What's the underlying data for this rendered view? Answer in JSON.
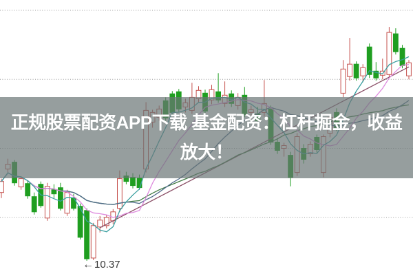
{
  "banner": {
    "line1": "正规股票配资APP下载 基金配资：杠杆掘金，收益",
    "line2": "放大！",
    "text_color": "#ffffff",
    "bg_color": "rgba(105,117,117,0.70)"
  },
  "annotation": {
    "arrow": "←",
    "label": "10.37",
    "price": 10.37,
    "candle_index": 13,
    "color": "#3a3a3a"
  },
  "chart_data": {
    "type": "candlestick",
    "title": "",
    "legend": [],
    "grid": "horizontal-dotted",
    "price_axis": {
      "min": 10.15,
      "max": 14.15,
      "gridlines": [
        11,
        12,
        13,
        14
      ],
      "grid_color": "#9e9e9e"
    },
    "colors": {
      "up": "#c5504c",
      "up_fill": "#ffffff",
      "down": "#1f9e20"
    },
    "candle_format": [
      "open",
      "high",
      "low",
      "close"
    ],
    "candles": [
      [
        11.36,
        11.56,
        11.28,
        11.52
      ],
      [
        11.7,
        11.85,
        11.64,
        11.77
      ],
      [
        11.8,
        11.83,
        11.46,
        11.5
      ],
      [
        11.44,
        11.59,
        11.4,
        11.56
      ],
      [
        11.49,
        11.53,
        11.27,
        11.31
      ],
      [
        11.3,
        11.36,
        11.04,
        11.08
      ],
      [
        11.48,
        11.52,
        11.14,
        11.17
      ],
      [
        10.99,
        11.5,
        10.95,
        11.45
      ],
      [
        11.4,
        11.48,
        11.28,
        11.34
      ],
      [
        11.43,
        11.5,
        11.1,
        11.13
      ],
      [
        11.06,
        11.4,
        11.02,
        11.36
      ],
      [
        11.28,
        11.34,
        11.1,
        11.13
      ],
      [
        11.16,
        11.2,
        10.68,
        10.71
      ],
      [
        11.1,
        11.13,
        10.37,
        10.4
      ],
      [
        10.41,
        10.92,
        10.38,
        10.88
      ],
      [
        10.86,
        11.02,
        10.78,
        10.96
      ],
      [
        10.88,
        11.04,
        10.84,
        11.0
      ],
      [
        10.95,
        11.12,
        10.9,
        11.08
      ],
      [
        11.13,
        11.68,
        11.08,
        11.56
      ],
      [
        11.6,
        11.66,
        11.48,
        11.52
      ],
      [
        11.58,
        11.64,
        11.42,
        11.46
      ],
      [
        11.57,
        11.62,
        11.4,
        11.43
      ],
      [
        11.7,
        12.67,
        11.65,
        12.55
      ],
      [
        12.38,
        12.56,
        12.3,
        12.52
      ],
      [
        12.45,
        12.62,
        12.4,
        12.57
      ],
      [
        12.69,
        12.74,
        12.4,
        12.44
      ],
      [
        12.79,
        12.83,
        12.48,
        12.52
      ],
      [
        12.82,
        12.86,
        12.53,
        12.57
      ],
      [
        12.6,
        12.72,
        12.52,
        12.66
      ],
      [
        12.55,
        12.95,
        12.5,
        12.74
      ],
      [
        12.72,
        12.9,
        12.66,
        12.84
      ],
      [
        12.8,
        12.85,
        12.5,
        12.54
      ],
      [
        12.7,
        12.92,
        12.64,
        12.85
      ],
      [
        12.82,
        13.09,
        12.66,
        12.7
      ],
      [
        12.65,
        12.97,
        12.6,
        12.77
      ],
      [
        12.79,
        12.84,
        12.6,
        12.65
      ],
      [
        12.62,
        12.8,
        12.56,
        12.74
      ],
      [
        12.77,
        12.89,
        12.45,
        12.49
      ],
      [
        12.52,
        12.62,
        12.42,
        12.56
      ],
      [
        12.5,
        12.6,
        12.36,
        12.4
      ],
      [
        12.52,
        12.99,
        12.46,
        12.65
      ],
      [
        12.57,
        12.62,
        12.05,
        12.09
      ],
      [
        12.09,
        12.15,
        11.92,
        11.97
      ],
      [
        12.0,
        12.08,
        11.88,
        12.04
      ],
      [
        11.9,
        11.95,
        11.45,
        11.58
      ],
      [
        11.65,
        12.22,
        11.6,
        12.17
      ],
      [
        12.0,
        12.06,
        11.78,
        11.84
      ],
      [
        11.92,
        12.1,
        11.88,
        12.06
      ],
      [
        12.16,
        12.2,
        11.94,
        11.98
      ],
      [
        11.65,
        12.2,
        11.58,
        12.17
      ],
      [
        12.22,
        12.5,
        12.16,
        12.45
      ],
      [
        12.52,
        12.58,
        12.25,
        12.3
      ],
      [
        12.8,
        13.28,
        12.74,
        13.15
      ],
      [
        13.04,
        13.6,
        12.98,
        13.22
      ],
      [
        13.22,
        13.26,
        12.98,
        13.02
      ],
      [
        13.05,
        13.22,
        12.96,
        13.17
      ],
      [
        13.47,
        13.52,
        13.02,
        13.07
      ],
      [
        13.12,
        13.25,
        12.98,
        13.02
      ],
      [
        13.06,
        13.3,
        13.0,
        13.12
      ],
      [
        13.07,
        13.76,
        13.02,
        13.68
      ],
      [
        13.66,
        13.74,
        13.36,
        13.4
      ],
      [
        13.45,
        13.5,
        13.16,
        13.2
      ],
      [
        13.05,
        13.28,
        13.0,
        13.24
      ]
    ],
    "ma_lines": [
      {
        "name": "MA30",
        "window": 30,
        "color": "#3f7a42"
      },
      {
        "name": "MA20",
        "window": 20,
        "color": "#4f6b8a"
      },
      {
        "name": "MA10",
        "window": 10,
        "color": "#de8ade"
      },
      {
        "name": "MA5",
        "window": 5,
        "color": "#3a9fa0"
      }
    ],
    "trend_line": {
      "color": "#8a4f66",
      "from": {
        "index": 15,
        "price": 10.85
      },
      "to": {
        "index": 62,
        "price": 13.18
      }
    }
  }
}
